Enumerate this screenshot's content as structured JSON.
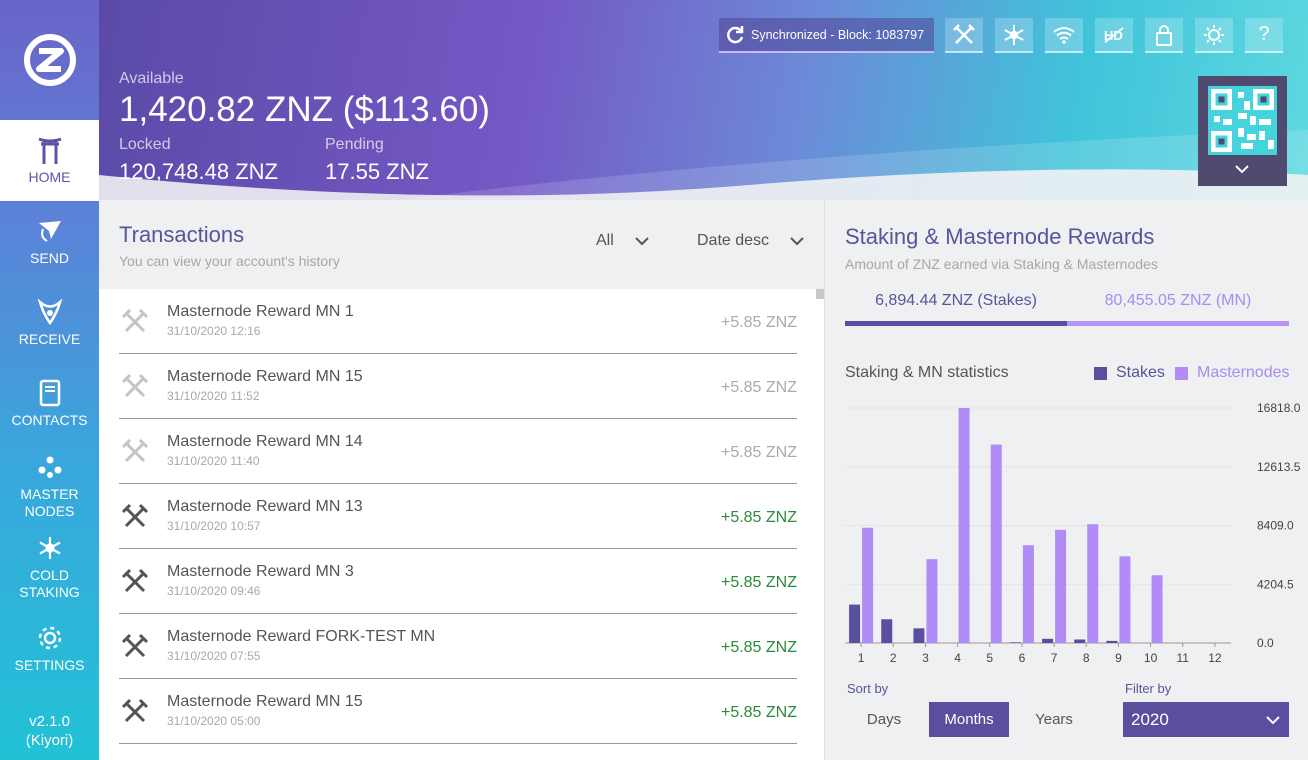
{
  "app": {
    "version": "v2.1.0",
    "codename": "(Kiyori)"
  },
  "sidebar": {
    "items": [
      {
        "label": "HOME",
        "icon": "torii-gate-icon"
      },
      {
        "label": "SEND",
        "icon": "send-icon"
      },
      {
        "label": "RECEIVE",
        "icon": "receive-icon"
      },
      {
        "label": "CONTACTS",
        "icon": "book-icon"
      },
      {
        "label": "MASTER\nNODES",
        "icon": "masternodes-icon"
      },
      {
        "label": "COLD\nSTAKING",
        "icon": "snowflake-icon"
      },
      {
        "label": "SETTINGS",
        "icon": "gear-icon"
      }
    ]
  },
  "header": {
    "available_label": "Available",
    "available_value": "1,420.82 ZNZ ($113.60)",
    "locked_label": "Locked",
    "locked_value": "120,748.48 ZNZ",
    "pending_label": "Pending",
    "pending_value": "17.55 ZNZ",
    "sync_text": "Synchronized - Block: 1083797",
    "toolbar_icons": [
      "hammer-pick-icon",
      "snowflake-icon",
      "wifi-icon",
      "hd-off-icon",
      "lock-icon",
      "sun-icon",
      "help-icon"
    ],
    "help_label": "?"
  },
  "transactions": {
    "title": "Transactions",
    "subtitle": "You can view your account's history",
    "filter": "All",
    "sort": "Date desc",
    "rows": [
      {
        "name": "Masternode Reward MN 1",
        "date": "31/10/2020 12:16",
        "amount": "+5.85 ZNZ",
        "status": "pending"
      },
      {
        "name": "Masternode Reward MN 15",
        "date": "31/10/2020 11:52",
        "amount": "+5.85 ZNZ",
        "status": "pending"
      },
      {
        "name": "Masternode Reward MN 14",
        "date": "31/10/2020 11:40",
        "amount": "+5.85 ZNZ",
        "status": "pending"
      },
      {
        "name": "Masternode Reward MN 13",
        "date": "31/10/2020 10:57",
        "amount": "+5.85 ZNZ",
        "status": "confirmed"
      },
      {
        "name": "Masternode Reward MN 3",
        "date": "31/10/2020 09:46",
        "amount": "+5.85 ZNZ",
        "status": "confirmed"
      },
      {
        "name": "Masternode Reward FORK-TEST MN",
        "date": "31/10/2020 07:55",
        "amount": "+5.85 ZNZ",
        "status": "confirmed"
      },
      {
        "name": "Masternode Reward MN 15",
        "date": "31/10/2020 05:00",
        "amount": "+5.85 ZNZ",
        "status": "confirmed"
      }
    ]
  },
  "rewards": {
    "title": "Staking & Masternode Rewards",
    "subtitle": "Amount of ZNZ earned via Staking & Masternodes",
    "tab_stakes": "6,894.44 ZNZ (Stakes)",
    "tab_mn": "80,455.05 ZNZ (MN)",
    "stats_label": "Staking & MN statistics",
    "legend_stakes": "Stakes",
    "legend_mn": "Masternodes",
    "sort_label": "Sort by",
    "sort_options": [
      "Days",
      "Months",
      "Years"
    ],
    "sort_selected": "Months",
    "filter_label": "Filter by",
    "filter_value": "2020"
  },
  "colors": {
    "stakes": "#5a4f9e",
    "masternodes": "#b28cf6",
    "confirmed": "#2a8a3a",
    "pending": "#aaaaaa"
  },
  "chart_data": {
    "type": "bar",
    "categories": [
      "1",
      "2",
      "3",
      "4",
      "5",
      "6",
      "7",
      "8",
      "9",
      "10",
      "11",
      "12"
    ],
    "series": [
      {
        "name": "Stakes",
        "values": [
          2750,
          1700,
          1050,
          0,
          0,
          50,
          300,
          250,
          150,
          0,
          0,
          0
        ]
      },
      {
        "name": "Masternodes",
        "values": [
          8250,
          0,
          6000,
          16818,
          14200,
          7000,
          8100,
          8500,
          6200,
          4850,
          0,
          0
        ]
      }
    ],
    "yticks": [
      "16818.0",
      "12613.5",
      "8409.0",
      "4204.5",
      "0.0"
    ],
    "ylim": [
      0,
      16818
    ],
    "grid": true,
    "legend": "top-right"
  }
}
